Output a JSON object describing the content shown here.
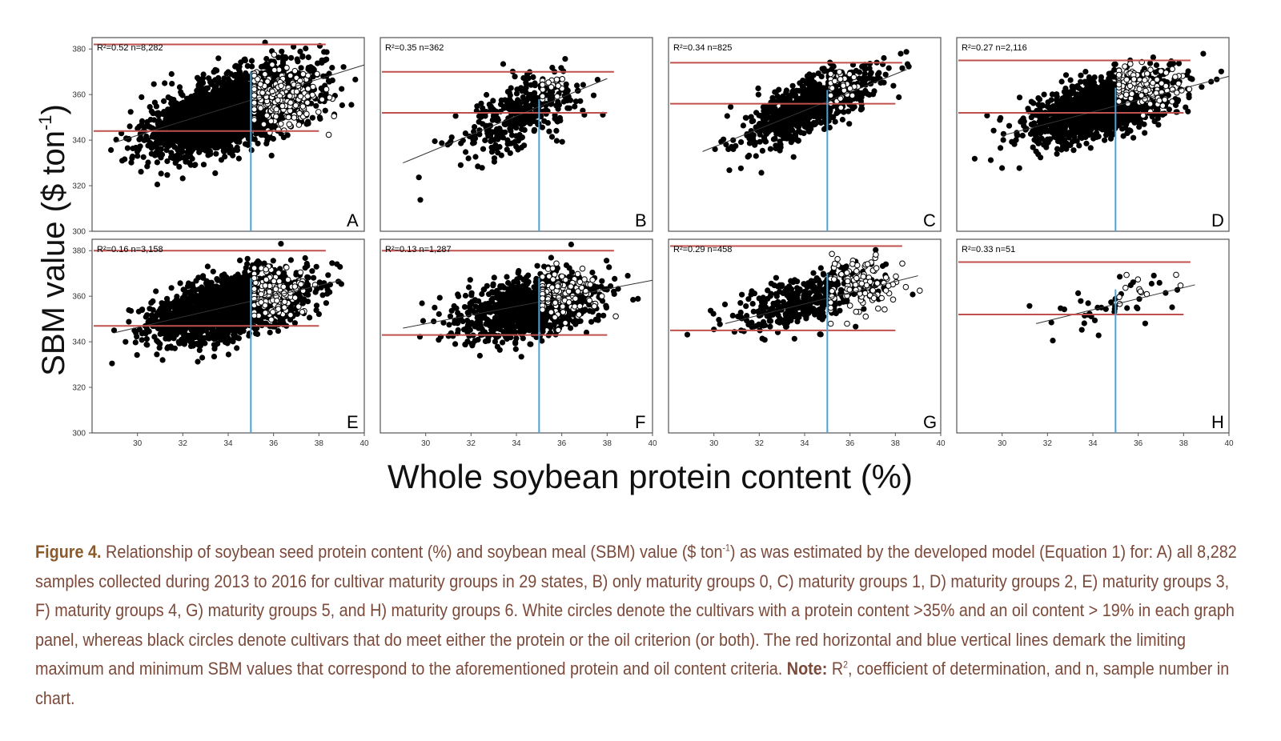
{
  "figure": {
    "ylabel": "SBM value ($ ton",
    "ylabel_sup": "-1",
    "ylabel_close": ")",
    "xlabel": "Whole soybean protein content (%)"
  },
  "chart_data": [
    {
      "panel": "A",
      "type": "scatter",
      "xlim": [
        28,
        40
      ],
      "ylim": [
        300,
        385
      ],
      "xticks": [
        30,
        32,
        34,
        36,
        38,
        40
      ],
      "yticks": [
        300,
        320,
        340,
        360,
        380
      ],
      "annotation": "R²=0.52  n=8,282",
      "r2": "0.52",
      "n": "8,282",
      "red_lines": [
        382,
        344
      ],
      "blue_line": 35,
      "fit": {
        "x": [
          29,
          40
        ],
        "y": [
          339,
          373
        ]
      },
      "center": [
        34,
        352
      ],
      "spread": [
        1.7,
        7.5
      ],
      "count": 2600,
      "open_center": [
        36.2,
        359
      ],
      "open_spread": [
        0.8,
        6
      ],
      "open_count": 260
    },
    {
      "panel": "B",
      "type": "scatter",
      "xlim": [
        28,
        40
      ],
      "ylim": [
        300,
        385
      ],
      "xticks": [
        30,
        32,
        34,
        36,
        38,
        40
      ],
      "yticks": [
        300,
        320,
        340,
        360,
        380
      ],
      "annotation": "R²=0.35  n=362",
      "r2": "0.35",
      "n": "362",
      "red_lines": [
        370,
        352
      ],
      "blue_line": 35,
      "fit": {
        "x": [
          29,
          38
        ],
        "y": [
          330,
          367
        ]
      },
      "center": [
        34,
        350
      ],
      "spread": [
        1.3,
        7
      ],
      "count": 340,
      "open_center": [
        35.3,
        364
      ],
      "open_spread": [
        0.5,
        3
      ],
      "open_count": 18
    },
    {
      "panel": "C",
      "type": "scatter",
      "xlim": [
        28,
        40
      ],
      "ylim": [
        300,
        385
      ],
      "xticks": [
        30,
        32,
        34,
        36,
        38,
        40
      ],
      "yticks": [
        300,
        320,
        340,
        360,
        380
      ],
      "annotation": "R²=0.34  n=825",
      "r2": "0.34",
      "n": "825",
      "red_lines": [
        374,
        356
      ],
      "blue_line": 35,
      "fit": {
        "x": [
          29.5,
          38.5
        ],
        "y": [
          335,
          371
        ]
      },
      "center": [
        34.2,
        355
      ],
      "spread": [
        1.4,
        6
      ],
      "count": 780,
      "open_center": [
        35.6,
        364
      ],
      "open_spread": [
        0.5,
        3.5
      ],
      "open_count": 35
    },
    {
      "panel": "D",
      "type": "scatter",
      "xlim": [
        28,
        40
      ],
      "ylim": [
        300,
        385
      ],
      "xticks": [
        30,
        32,
        34,
        36,
        38,
        40
      ],
      "yticks": [
        300,
        320,
        340,
        360,
        380
      ],
      "annotation": "R²=0.27  n=2,116",
      "r2": "0.27",
      "n": "2,116",
      "red_lines": [
        375,
        352
      ],
      "blue_line": 35,
      "fit": {
        "x": [
          30,
          40
        ],
        "y": [
          342,
          368
        ]
      },
      "center": [
        34.3,
        354
      ],
      "spread": [
        1.6,
        6
      ],
      "count": 1500,
      "open_center": [
        36,
        363
      ],
      "open_spread": [
        0.8,
        4.5
      ],
      "open_count": 150
    },
    {
      "panel": "E",
      "type": "scatter",
      "xlim": [
        28,
        40
      ],
      "ylim": [
        300,
        385
      ],
      "xticks": [
        30,
        32,
        34,
        36,
        38,
        40
      ],
      "yticks": [
        300,
        320,
        340,
        360,
        380
      ],
      "annotation": "R²=0.16  n=3,158",
      "r2": "0.16",
      "n": "3,158",
      "red_lines": [
        380,
        347
      ],
      "blue_line": 35,
      "fit": {
        "x": [
          29,
          39
        ],
        "y": [
          344,
          367
        ]
      },
      "center": [
        34,
        355
      ],
      "spread": [
        1.6,
        6.5
      ],
      "count": 2100,
      "open_center": [
        36,
        362
      ],
      "open_spread": [
        0.7,
        5
      ],
      "open_count": 180
    },
    {
      "panel": "F",
      "type": "scatter",
      "xlim": [
        28,
        40
      ],
      "ylim": [
        300,
        385
      ],
      "xticks": [
        30,
        32,
        34,
        36,
        38,
        40
      ],
      "yticks": [
        300,
        320,
        340,
        360,
        380
      ],
      "annotation": "R²=0.13  n=1,287",
      "r2": "0.13",
      "n": "1,287",
      "red_lines": [
        380,
        343
      ],
      "blue_line": 35,
      "fit": {
        "x": [
          29,
          40
        ],
        "y": [
          346,
          367
        ]
      },
      "center": [
        34.5,
        355
      ],
      "spread": [
        1.5,
        6
      ],
      "count": 1200,
      "open_center": [
        36,
        361
      ],
      "open_spread": [
        0.8,
        5
      ],
      "open_count": 140
    },
    {
      "panel": "G",
      "type": "scatter",
      "xlim": [
        28,
        40
      ],
      "ylim": [
        300,
        385
      ],
      "xticks": [
        30,
        32,
        34,
        36,
        38,
        40
      ],
      "yticks": [
        300,
        320,
        340,
        360,
        380
      ],
      "annotation": "R²=0.29  n=458",
      "r2": "0.29",
      "n": "458",
      "red_lines": [
        382,
        345
      ],
      "blue_line": 35,
      "fit": {
        "x": [
          30.5,
          39
        ],
        "y": [
          348,
          369
        ]
      },
      "center": [
        34,
        358
      ],
      "spread": [
        1.5,
        5.5
      ],
      "count": 420,
      "open_center": [
        36.3,
        364
      ],
      "open_spread": [
        1,
        6
      ],
      "open_count": 110
    },
    {
      "panel": "H",
      "type": "scatter",
      "xlim": [
        28,
        40
      ],
      "ylim": [
        300,
        385
      ],
      "xticks": [
        30,
        32,
        34,
        36,
        38,
        40
      ],
      "yticks": [
        300,
        320,
        340,
        360,
        380
      ],
      "annotation": "R²=0.33  n=51",
      "r2": "0.33",
      "n": "51",
      "red_lines": [
        375,
        352
      ],
      "blue_line": 35,
      "fit": {
        "x": [
          31.5,
          38.5
        ],
        "y": [
          348,
          365
        ]
      },
      "center": [
        34.5,
        356
      ],
      "spread": [
        1.6,
        5
      ],
      "count": 40,
      "open_center": [
        36,
        362
      ],
      "open_spread": [
        1,
        4
      ],
      "open_count": 11
    }
  ],
  "colors": {
    "red_line": "#c0504d",
    "blue_line": "#4aa3d6",
    "points": "#000000"
  },
  "caption": {
    "fig_label": "Figure 4.",
    "body_1": " Relationship of soybean seed protein content (%) and soybean meal (SBM) value ($ ton",
    "body_1_sup": "-1",
    "body_2": ") as was estimated by the developed model (Equation 1) for: A) all 8,282 samples collected during 2013 to 2016 for cultivar maturity groups in 29 states, B) only maturity groups 0, C) maturity groups 1, D) maturity groups 2, E) maturity groups 3, F) maturity groups 4, G) maturity groups 5, and H) maturity groups 6. White circles denote the cultivars with a protein content >35% and an oil content > 19% in each graph panel, whereas black circles denote cultivars that do meet either the protein or the oil criterion (or both). The red horizontal and blue vertical lines demark the limiting maximum and minimum SBM values that correspond to the aforementioned protein and oil content criteria. ",
    "note_label": "Note:",
    "note_text_1": " R",
    "note_sup": "2",
    "note_text_2": ", coefficient of determination, and n, sample number in chart."
  }
}
